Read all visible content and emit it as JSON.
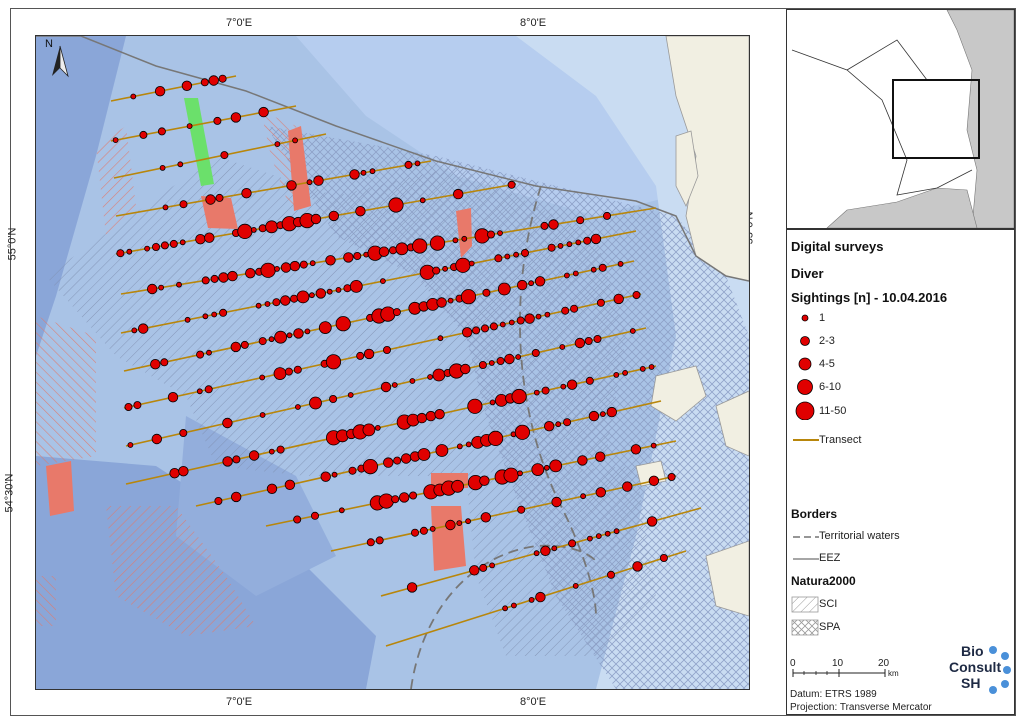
{
  "graticule": {
    "top": [
      "7°0'E",
      "8°0'E"
    ],
    "bottom": [
      "7°0'E",
      "8°0'E"
    ],
    "left": [
      "55°0'N",
      "54°30'N"
    ],
    "right": [
      "55°0'N",
      "54°30'N"
    ]
  },
  "north_arrow": {
    "label": "N"
  },
  "legend": {
    "title": "Digital surveys",
    "species": "Diver",
    "sightings_title": "Sightings [n] - 10.04.2016",
    "sighting_classes": [
      "1",
      "2-3",
      "4-5",
      "6-10",
      "11-50"
    ],
    "transect_label": "Transect",
    "borders_title": "Borders",
    "territorial_label": "Territorial waters",
    "eez_label": "EEZ",
    "natura_title": "Natura2000",
    "sci_label": "SCI",
    "spa_label": "SPA"
  },
  "scale_bar": {
    "ticks": [
      "0",
      "10",
      "20"
    ],
    "unit": "km"
  },
  "footer": {
    "datum": "Datum: ETRS 1989",
    "projection": "Projection: Transverse Mercator"
  },
  "logo": {
    "line1": "Bio",
    "line2": "Consult",
    "line3": "SH"
  },
  "colors": {
    "sea_deep": "#8aa6d8",
    "sea_mid": "#a9c3e6",
    "sea_shallow": "#c9dcf2",
    "land": "#f1efe2",
    "transect": "#b8860b",
    "sighting": "#e00000",
    "wind_farm": "#e8796a",
    "green_area": "#6be06b"
  },
  "sighting_size_classes": {
    "1": "size class 1",
    "2-3": "size class 2",
    "4-5": "size class 3",
    "6-10": "size class 4",
    "11-50": "size class 5"
  }
}
